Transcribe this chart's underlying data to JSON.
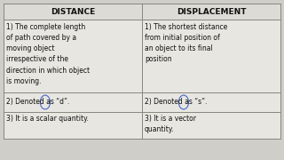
{
  "headers": [
    "DISTANCE",
    "DISPLACEMENT"
  ],
  "rows": [
    [
      "1) The complete length\nof path covered by a\nmoving object\nirrespective of the\ndirection in which object\nis moving.",
      "1) The shortest distance\nfrom initial position of\nan object to its final\nposition"
    ],
    [
      "2) Denoted as “d”.",
      "2) Denoted as “s”."
    ],
    [
      "3) It is a scalar quantity.",
      "3) It is a vector\nquantity."
    ]
  ],
  "bg_color": "#d0cec8",
  "header_bg": "#dddbd5",
  "cell_bg": "#e8e6e0",
  "line_color": "#888880",
  "text_color": "#111111",
  "header_fontsize": 6.5,
  "cell_fontsize": 5.5,
  "circle_color": "#4466cc"
}
